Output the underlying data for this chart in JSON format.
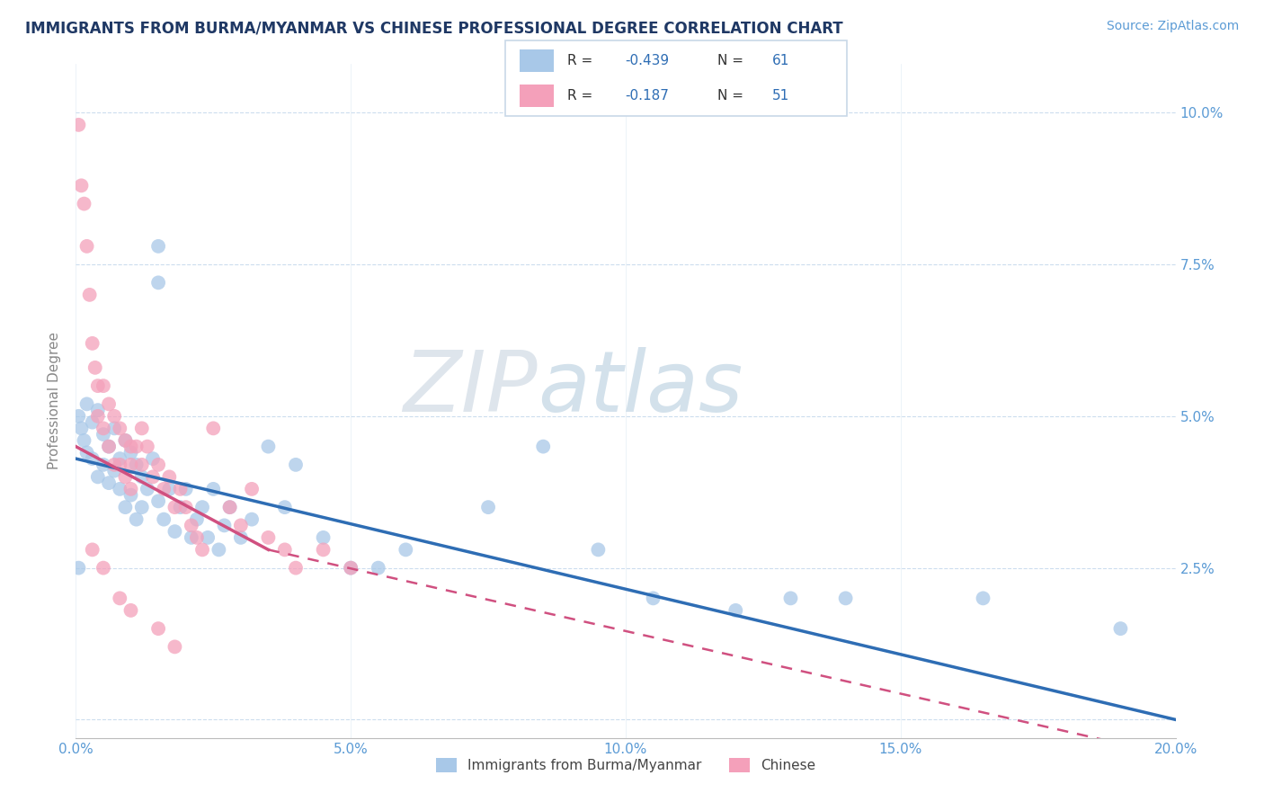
{
  "title": "IMMIGRANTS FROM BURMA/MYANMAR VS CHINESE PROFESSIONAL DEGREE CORRELATION CHART",
  "source": "Source: ZipAtlas.com",
  "ylabel": "Professional Degree",
  "color_blue": "#A8C8E8",
  "color_pink": "#F4A0BA",
  "color_blue_line": "#2E6DB4",
  "color_pink_line": "#D05080",
  "color_title": "#1F3864",
  "color_source": "#5B9BD5",
  "color_axis_ticks": "#5B9BD5",
  "color_grid": "#CCDDEE",
  "watermark_zip": "ZIP",
  "watermark_atlas": "atlas",
  "blue_dots": [
    [
      0.05,
      5.0
    ],
    [
      0.1,
      4.8
    ],
    [
      0.15,
      4.6
    ],
    [
      0.2,
      5.2
    ],
    [
      0.2,
      4.4
    ],
    [
      0.3,
      4.9
    ],
    [
      0.3,
      4.3
    ],
    [
      0.4,
      5.1
    ],
    [
      0.4,
      4.0
    ],
    [
      0.5,
      4.7
    ],
    [
      0.5,
      4.2
    ],
    [
      0.6,
      4.5
    ],
    [
      0.6,
      3.9
    ],
    [
      0.7,
      4.8
    ],
    [
      0.7,
      4.1
    ],
    [
      0.8,
      4.3
    ],
    [
      0.8,
      3.8
    ],
    [
      0.9,
      4.6
    ],
    [
      0.9,
      3.5
    ],
    [
      1.0,
      4.4
    ],
    [
      1.0,
      3.7
    ],
    [
      1.1,
      4.2
    ],
    [
      1.1,
      3.3
    ],
    [
      1.2,
      4.0
    ],
    [
      1.2,
      3.5
    ],
    [
      1.3,
      3.8
    ],
    [
      1.4,
      4.3
    ],
    [
      1.5,
      3.6
    ],
    [
      1.6,
      3.3
    ],
    [
      1.7,
      3.8
    ],
    [
      1.8,
      3.1
    ],
    [
      1.9,
      3.5
    ],
    [
      2.0,
      3.8
    ],
    [
      2.1,
      3.0
    ],
    [
      2.2,
      3.3
    ],
    [
      2.3,
      3.5
    ],
    [
      2.4,
      3.0
    ],
    [
      2.5,
      3.8
    ],
    [
      2.6,
      2.8
    ],
    [
      2.7,
      3.2
    ],
    [
      2.8,
      3.5
    ],
    [
      3.0,
      3.0
    ],
    [
      3.2,
      3.3
    ],
    [
      3.5,
      4.5
    ],
    [
      3.8,
      3.5
    ],
    [
      4.0,
      4.2
    ],
    [
      4.5,
      3.0
    ],
    [
      5.0,
      2.5
    ],
    [
      5.5,
      2.5
    ],
    [
      6.0,
      2.8
    ],
    [
      7.5,
      3.5
    ],
    [
      8.5,
      4.5
    ],
    [
      9.5,
      2.8
    ],
    [
      10.5,
      2.0
    ],
    [
      12.0,
      1.8
    ],
    [
      13.0,
      2.0
    ],
    [
      14.0,
      2.0
    ],
    [
      16.5,
      2.0
    ],
    [
      19.0,
      1.5
    ],
    [
      1.5,
      7.8
    ],
    [
      1.5,
      7.2
    ],
    [
      0.05,
      2.5
    ]
  ],
  "pink_dots": [
    [
      0.05,
      9.8
    ],
    [
      0.1,
      8.8
    ],
    [
      0.15,
      8.5
    ],
    [
      0.2,
      7.8
    ],
    [
      0.25,
      7.0
    ],
    [
      0.3,
      6.2
    ],
    [
      0.35,
      5.8
    ],
    [
      0.4,
      5.5
    ],
    [
      0.4,
      5.0
    ],
    [
      0.5,
      5.5
    ],
    [
      0.5,
      4.8
    ],
    [
      0.6,
      5.2
    ],
    [
      0.6,
      4.5
    ],
    [
      0.7,
      5.0
    ],
    [
      0.7,
      4.2
    ],
    [
      0.8,
      4.8
    ],
    [
      0.8,
      4.2
    ],
    [
      0.9,
      4.6
    ],
    [
      0.9,
      4.0
    ],
    [
      1.0,
      4.5
    ],
    [
      1.0,
      4.2
    ],
    [
      1.0,
      3.8
    ],
    [
      1.1,
      4.5
    ],
    [
      1.2,
      4.8
    ],
    [
      1.2,
      4.2
    ],
    [
      1.3,
      4.5
    ],
    [
      1.4,
      4.0
    ],
    [
      1.5,
      4.2
    ],
    [
      1.6,
      3.8
    ],
    [
      1.7,
      4.0
    ],
    [
      1.8,
      3.5
    ],
    [
      1.9,
      3.8
    ],
    [
      2.0,
      3.5
    ],
    [
      2.1,
      3.2
    ],
    [
      2.2,
      3.0
    ],
    [
      2.3,
      2.8
    ],
    [
      2.5,
      4.8
    ],
    [
      2.8,
      3.5
    ],
    [
      3.0,
      3.2
    ],
    [
      3.2,
      3.8
    ],
    [
      3.5,
      3.0
    ],
    [
      3.8,
      2.8
    ],
    [
      4.0,
      2.5
    ],
    [
      4.5,
      2.8
    ],
    [
      5.0,
      2.5
    ],
    [
      0.3,
      2.8
    ],
    [
      0.5,
      2.5
    ],
    [
      0.8,
      2.0
    ],
    [
      1.0,
      1.8
    ],
    [
      1.5,
      1.5
    ],
    [
      1.8,
      1.2
    ]
  ],
  "blue_line": {
    "x0": 0.0,
    "y0": 4.3,
    "x1": 20.0,
    "y1": 0.0
  },
  "pink_line_solid": {
    "x0": 0.0,
    "y0": 4.5,
    "x1": 3.5,
    "y1": 2.8
  },
  "pink_line_dash": {
    "x0": 3.5,
    "y0": 2.8,
    "x1": 19.5,
    "y1": -0.5
  },
  "xlim": [
    0.0,
    20.0
  ],
  "ylim": [
    -0.3,
    10.8
  ],
  "xticks": [
    0,
    5,
    10,
    15,
    20
  ],
  "yticks": [
    0,
    2.5,
    5.0,
    7.5,
    10.0
  ],
  "xtick_labels": [
    "0.0%",
    "5.0%",
    "10.0%",
    "15.0%",
    "20.0%"
  ],
  "ytick_labels_right": [
    "",
    "2.5%",
    "5.0%",
    "7.5%",
    "10.0%"
  ]
}
